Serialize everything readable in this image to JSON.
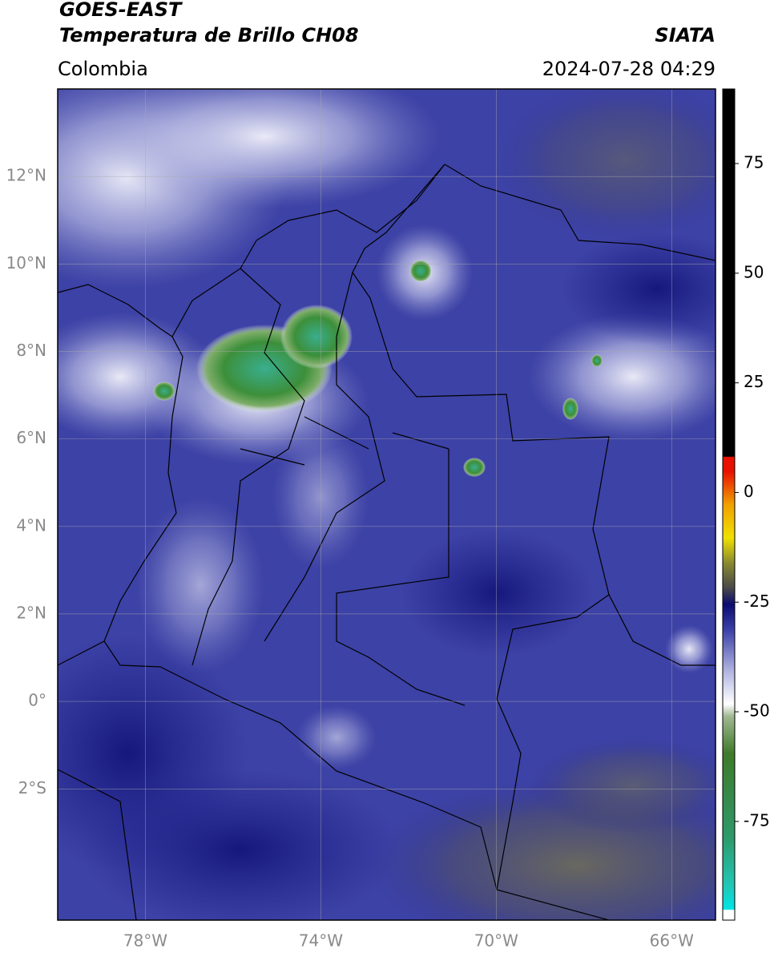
{
  "header": {
    "title_line1": "GOES-EAST",
    "title_line2": "Temperatura de Brillo CH08",
    "source": "SIATA",
    "region": "Colombia",
    "timestamp": "2024-07-28 04:29"
  },
  "map": {
    "xlim": [
      -80,
      -65
    ],
    "ylim": [
      -5,
      14
    ],
    "xticks": [
      {
        "value": -78,
        "label": "78°W"
      },
      {
        "value": -74,
        "label": "74°W"
      },
      {
        "value": -70,
        "label": "70°W"
      },
      {
        "value": -66,
        "label": "66°W"
      }
    ],
    "yticks": [
      {
        "value": 12,
        "label": "12°N"
      },
      {
        "value": 10,
        "label": "10°N"
      },
      {
        "value": 8,
        "label": "8°N"
      },
      {
        "value": 6,
        "label": "6°N"
      },
      {
        "value": 4,
        "label": "4°N"
      },
      {
        "value": 2,
        "label": "2°N"
      },
      {
        "value": 0,
        "label": "0°"
      },
      {
        "value": -2,
        "label": "2°S"
      }
    ],
    "grid": true
  },
  "colorbar": {
    "lim": [
      -97.5,
      92
    ],
    "ticks": [
      75,
      50,
      25,
      0,
      -25,
      -50,
      -75
    ]
  }
}
